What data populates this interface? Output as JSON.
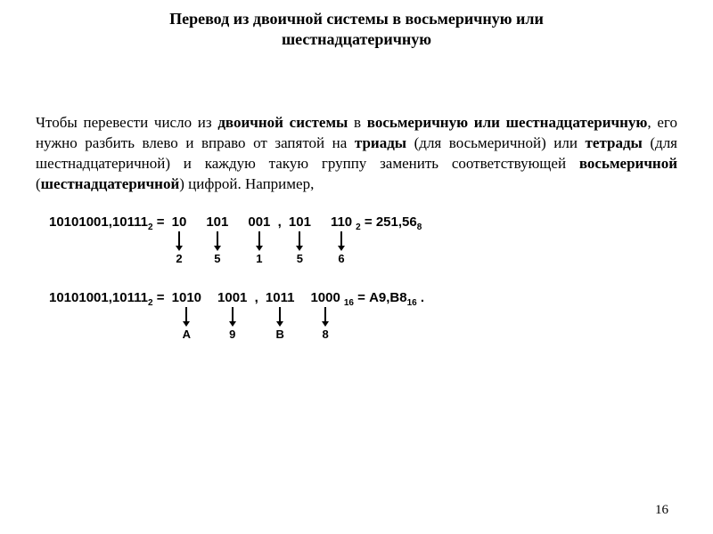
{
  "title_line1": "Перевод из двоичной системы в восьмеричную или",
  "title_line2": "шестнадцатеричную",
  "paragraph": {
    "p1": "Чтобы перевести число из ",
    "b1": "двоичной системы",
    "p2": " в ",
    "b2": "восьмеричную или шестнадцатеричную",
    "p3": ", его нужно разбить влево и вправо от запятой на ",
    "b3": "триады",
    "p4": " (для восьмеричной) или ",
    "b4": "тетрады",
    "p5": " (для шестнадцатеричной) и каждую такую группу заменить соответствующей ",
    "b5": "восьмеричной",
    "p6": " (",
    "b6": "шестнадцатеричной",
    "p7": ") цифрой. Например,"
  },
  "ex1": {
    "lhs": "10101001,10111",
    "lhs_sub": "2",
    "eq1": " = ",
    "groups_int": [
      {
        "bits": "10",
        "digit": "2"
      },
      {
        "bits": "101",
        "digit": "5"
      },
      {
        "bits": "001",
        "digit": "1"
      }
    ],
    "comma": ",",
    "groups_frac": [
      {
        "bits": "101",
        "digit": "5"
      },
      {
        "bits": "110",
        "digit": "6"
      }
    ],
    "mid_sub": "2",
    "eq2": " = ",
    "rhs": "251,56",
    "rhs_sub": "8"
  },
  "ex2": {
    "lhs": "10101001,10111",
    "lhs_sub": "2",
    "eq1": " = ",
    "groups_int": [
      {
        "bits": "1010",
        "digit": "A"
      },
      {
        "bits": "1001",
        "digit": "9"
      }
    ],
    "comma": ",",
    "groups_frac": [
      {
        "bits": "1011",
        "digit": "B"
      },
      {
        "bits": "1000",
        "digit": "8"
      }
    ],
    "mid_sub": "16",
    "eq2": " = ",
    "rhs": "A9,B8",
    "rhs_sub": "16",
    "tail_dot": " ."
  },
  "page_number": "16",
  "style": {
    "arrow_color": "#000000",
    "arrow_height": 22,
    "group_gap_triad": 18,
    "group_gap_tetrad": 14
  }
}
